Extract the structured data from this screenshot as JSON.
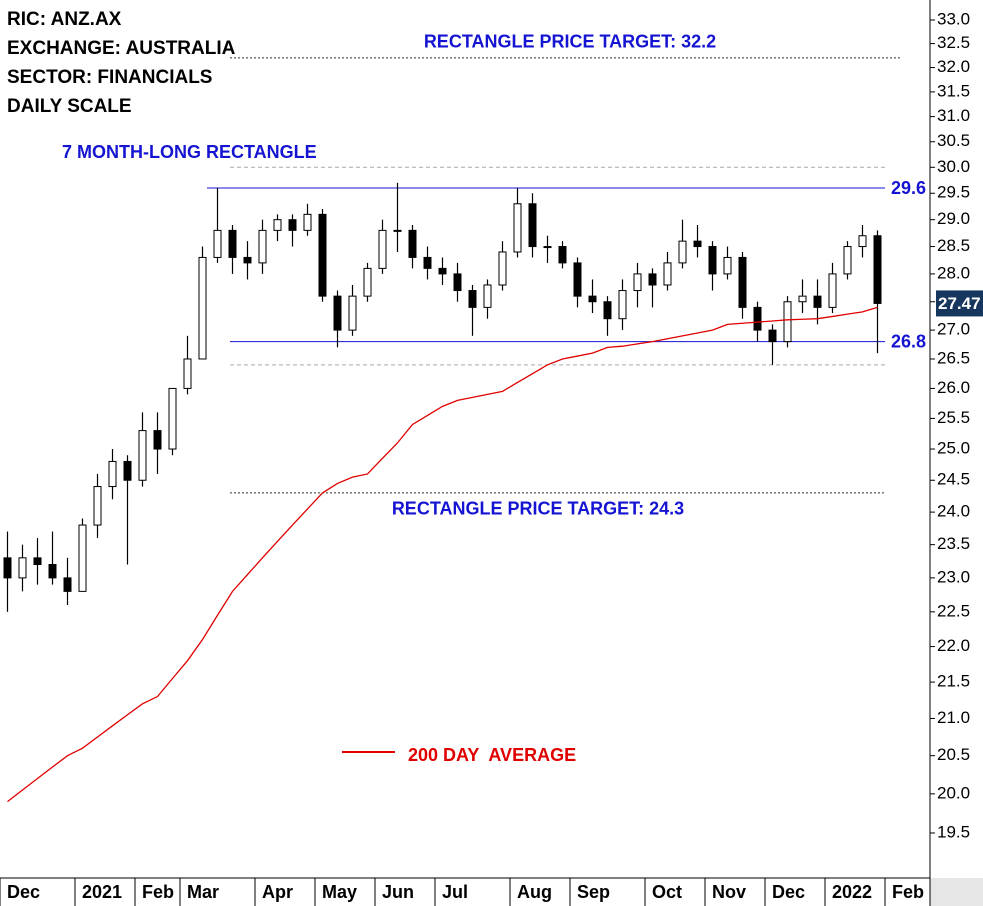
{
  "header": [
    "RIC: ANZ.AX",
    "EXCHANGE: AUSTRALIA",
    "SECTOR: FINANCIALS",
    "DAILY SCALE"
  ],
  "chart_data": {
    "type": "candlestick",
    "log_scale": true,
    "annotation": "7 MONTH-LONG RECTANGLE",
    "categories": [
      "Dec",
      null,
      null,
      null,
      null,
      "2021",
      null,
      null,
      null,
      "Feb",
      null,
      null,
      "Mar",
      null,
      null,
      null,
      null,
      "Apr",
      null,
      null,
      null,
      "May",
      null,
      null,
      null,
      "Jun",
      null,
      null,
      null,
      "Jul",
      null,
      null,
      null,
      null,
      "Aug",
      null,
      null,
      null,
      "Sep",
      null,
      null,
      null,
      null,
      "Oct",
      null,
      null,
      null,
      "Nov",
      null,
      null,
      null,
      "Dec",
      null,
      null,
      null,
      "2022",
      null,
      null,
      null,
      "Feb"
    ],
    "open": [
      23.3,
      23.0,
      23.3,
      23.2,
      23.0,
      22.8,
      23.8,
      24.4,
      24.8,
      24.5,
      25.3,
      25.0,
      26.0,
      26.5,
      28.3,
      28.8,
      28.3,
      28.2,
      28.8,
      29.0,
      28.8,
      29.1,
      27.6,
      27.0,
      27.6,
      28.1,
      28.8,
      28.8,
      28.3,
      28.1,
      28.0,
      27.7,
      27.4,
      27.8,
      28.4,
      29.3,
      28.5,
      28.5,
      28.2,
      27.6,
      27.5,
      27.2,
      27.7,
      28.0,
      27.8,
      28.2,
      28.6,
      28.5,
      28.0,
      28.3,
      27.4,
      27.0,
      26.8,
      27.5,
      27.6,
      27.4,
      28.0,
      28.5,
      28.7,
      null
    ],
    "high": [
      23.7,
      23.5,
      23.6,
      23.7,
      23.3,
      23.9,
      24.6,
      25.0,
      24.9,
      25.6,
      25.6,
      26.0,
      26.9,
      28.5,
      29.6,
      28.9,
      28.6,
      29.0,
      29.1,
      29.1,
      29.3,
      29.2,
      27.7,
      27.8,
      28.2,
      29.0,
      29.7,
      28.9,
      28.5,
      28.3,
      28.2,
      27.8,
      27.9,
      28.6,
      29.6,
      29.5,
      28.7,
      28.6,
      28.3,
      27.9,
      27.6,
      27.9,
      28.2,
      28.1,
      28.4,
      29.0,
      28.9,
      28.6,
      28.5,
      28.4,
      27.5,
      27.1,
      27.6,
      27.9,
      27.9,
      28.2,
      28.6,
      28.9,
      28.8,
      null
    ],
    "low": [
      22.5,
      22.8,
      22.9,
      22.9,
      22.6,
      22.8,
      23.6,
      24.2,
      23.2,
      24.4,
      24.6,
      24.9,
      25.9,
      26.5,
      28.2,
      28.0,
      27.9,
      28.0,
      28.6,
      28.5,
      28.7,
      27.5,
      26.7,
      26.9,
      27.5,
      28.0,
      28.4,
      28.1,
      27.9,
      27.8,
      27.5,
      26.9,
      27.2,
      27.7,
      28.3,
      28.3,
      28.2,
      28.1,
      27.4,
      27.3,
      26.9,
      27.0,
      27.4,
      27.4,
      27.7,
      28.1,
      28.3,
      27.7,
      27.9,
      27.2,
      26.8,
      26.4,
      26.7,
      27.3,
      27.1,
      27.3,
      27.9,
      28.3,
      26.6,
      null
    ],
    "close": [
      23.0,
      23.3,
      23.2,
      23.0,
      22.8,
      23.8,
      24.4,
      24.8,
      24.5,
      25.3,
      25.0,
      26.0,
      26.5,
      28.3,
      28.8,
      28.3,
      28.2,
      28.8,
      29.0,
      28.8,
      29.1,
      27.6,
      27.0,
      27.6,
      28.1,
      28.8,
      28.8,
      28.3,
      28.1,
      28.0,
      27.7,
      27.4,
      27.8,
      28.4,
      29.3,
      28.5,
      28.5,
      28.2,
      27.6,
      27.5,
      27.2,
      27.7,
      28.0,
      27.8,
      28.2,
      28.6,
      28.5,
      28.0,
      28.3,
      27.4,
      27.0,
      26.8,
      27.5,
      27.6,
      27.4,
      28.0,
      28.5,
      28.7,
      27.47,
      null
    ],
    "series": [
      {
        "name": "200 DAY  AVERAGE",
        "color": "#e00000",
        "values": [
          19.9,
          20.05,
          20.2,
          20.35,
          20.5,
          20.6,
          20.75,
          20.9,
          21.05,
          21.2,
          21.3,
          21.55,
          21.8,
          22.1,
          22.45,
          22.8,
          23.05,
          23.3,
          23.55,
          23.8,
          24.05,
          24.3,
          24.45,
          24.55,
          24.6,
          24.85,
          25.1,
          25.4,
          25.55,
          25.7,
          25.8,
          25.85,
          25.9,
          25.95,
          26.1,
          26.25,
          26.4,
          26.5,
          26.55,
          26.6,
          26.7,
          26.72,
          26.76,
          26.8,
          26.85,
          26.9,
          26.95,
          27.0,
          27.1,
          27.12,
          27.14,
          27.16,
          27.18,
          27.19,
          27.2,
          27.24,
          27.28,
          27.32,
          27.4,
          null
        ]
      }
    ],
    "levels": [
      {
        "value": 29.6,
        "label": "29.6",
        "color": "#1414d2"
      },
      {
        "value": 26.8,
        "label": "26.8",
        "color": "#1414d2"
      }
    ],
    "range_bounds": [
      30.0,
      26.4
    ],
    "targets": [
      {
        "value": 32.2,
        "label": "RECTANGLE PRICE TARGET: 32.2"
      },
      {
        "value": 24.3,
        "label": "RECTANGLE PRICE TARGET: 24.3"
      }
    ],
    "last_price": 27.47,
    "ylim": [
      18.94,
      33.43
    ],
    "yticks": [
      {
        "value": 19.5,
        "label": "19.5"
      },
      {
        "value": 20,
        "label": "20.0"
      },
      {
        "value": 20.5,
        "label": "20.5"
      },
      {
        "value": 21,
        "label": "21.0"
      },
      {
        "value": 21.5,
        "label": "21.5"
      },
      {
        "value": 22,
        "label": "22.0"
      },
      {
        "value": 22.5,
        "label": "22.5"
      },
      {
        "value": 23,
        "label": "23.0"
      },
      {
        "value": 23.5,
        "label": "23.5"
      },
      {
        "value": 24,
        "label": "24.0"
      },
      {
        "value": 24.5,
        "label": "24.5"
      },
      {
        "value": 25,
        "label": "25.0"
      },
      {
        "value": 25.5,
        "label": "25.5"
      },
      {
        "value": 26,
        "label": "26.0"
      },
      {
        "value": 26.5,
        "label": "26.5"
      },
      {
        "value": 27,
        "label": "27.0"
      },
      {
        "value": 27.5,
        "label": "27.5"
      },
      {
        "value": 28,
        "label": "28.0"
      },
      {
        "value": 28.5,
        "label": "28.5"
      },
      {
        "value": 29,
        "label": "29.0"
      },
      {
        "value": 29.5,
        "label": "29.5"
      },
      {
        "value": 30,
        "label": "30.0"
      },
      {
        "value": 30.5,
        "label": "30.5"
      },
      {
        "value": 31,
        "label": "31.0"
      },
      {
        "value": 31.5,
        "label": "31.5"
      },
      {
        "value": 32,
        "label": "32.0"
      },
      {
        "value": 32.5,
        "label": "32.5"
      },
      {
        "value": 33,
        "label": "33.0"
      }
    ]
  }
}
